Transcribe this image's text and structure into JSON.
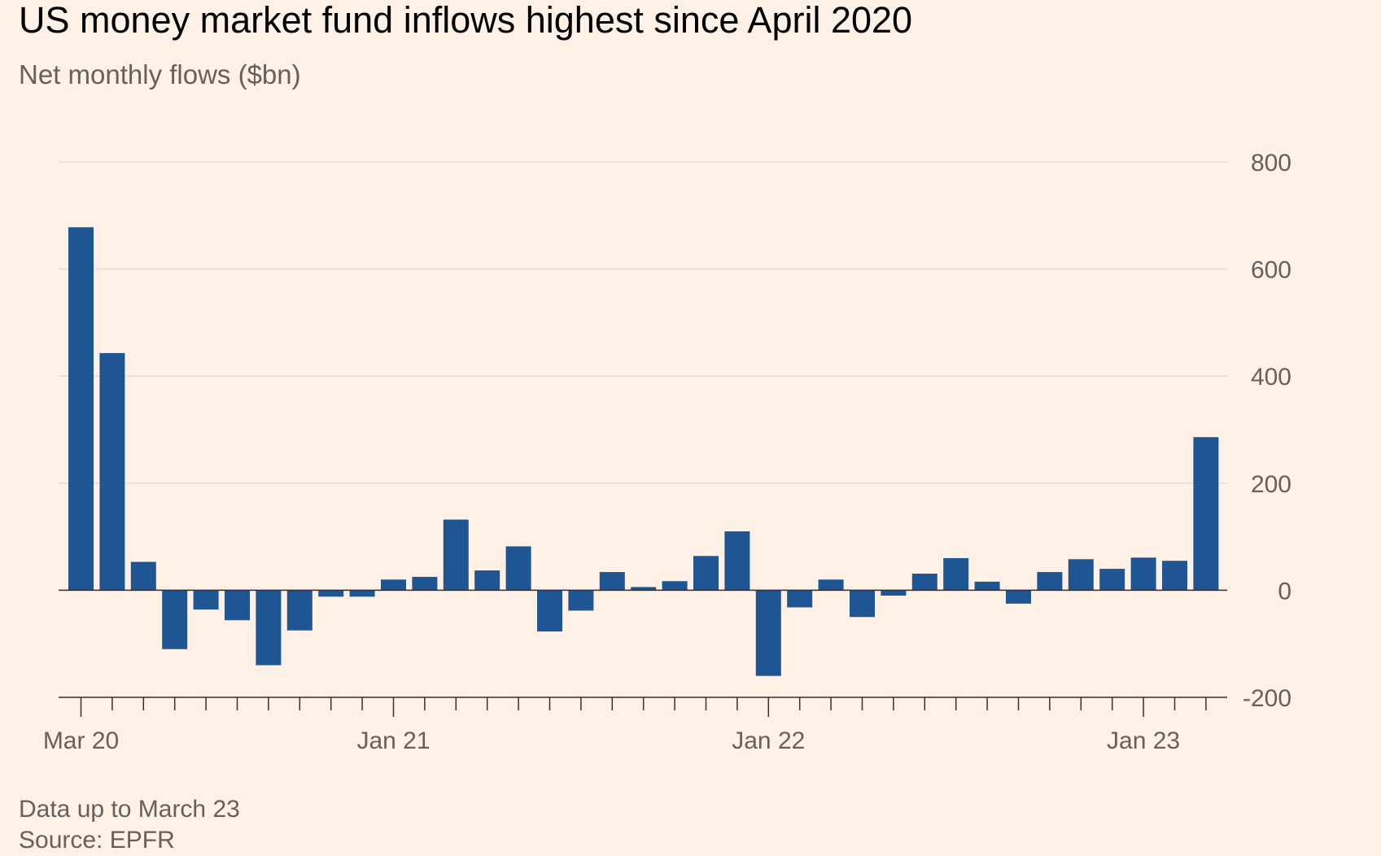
{
  "title": "US money market fund inflows highest since April 2020",
  "subtitle": "Net monthly flows ($bn)",
  "note": "Data up to March 23",
  "source": "Source: EPFR",
  "colors": {
    "background": "#fff1e5",
    "bar": "#1f5592",
    "grid": "#e6d9ce",
    "axis": "#33302e",
    "text": "#66605c"
  },
  "chart_data": {
    "type": "bar",
    "title": "US money market fund inflows highest since April 2020",
    "subtitle": "Net monthly flows ($bn)",
    "xlabel": "",
    "ylabel": "",
    "ylim": [
      -200,
      800
    ],
    "yticks": [
      800,
      600,
      400,
      200,
      0,
      -200
    ],
    "y_axis_side": "right",
    "grid": true,
    "legend": "none",
    "categories": [
      "Mar 20",
      "Apr 20",
      "May 20",
      "Jun 20",
      "Jul 20",
      "Aug 20",
      "Sep 20",
      "Oct 20",
      "Nov 20",
      "Dec 20",
      "Jan 21",
      "Feb 21",
      "Mar 21",
      "Apr 21",
      "May 21",
      "Jun 21",
      "Jul 21",
      "Aug 21",
      "Sep 21",
      "Oct 21",
      "Nov 21",
      "Dec 21",
      "Jan 22",
      "Feb 22",
      "Mar 22",
      "Apr 22",
      "May 22",
      "Jun 22",
      "Jul 22",
      "Aug 22",
      "Sep 22",
      "Oct 22",
      "Nov 22",
      "Dec 22",
      "Jan 23",
      "Feb 23",
      "Mar 23"
    ],
    "x_tick_labels": [
      "Mar 20",
      "Jan 21",
      "Jan 22",
      "Jan 23"
    ],
    "values": [
      678,
      443,
      53,
      -110,
      -36,
      -56,
      -140,
      -75,
      -12,
      -12,
      20,
      25,
      132,
      37,
      82,
      -77,
      -38,
      34,
      6,
      17,
      64,
      110,
      -160,
      -32,
      20,
      -50,
      -10,
      31,
      60,
      16,
      -25,
      34,
      58,
      40,
      61,
      55,
      286
    ]
  }
}
